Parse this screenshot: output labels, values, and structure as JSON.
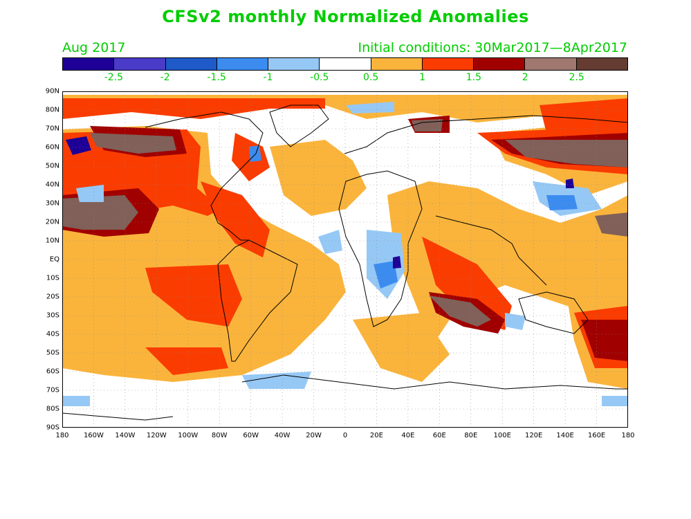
{
  "title": "CFSv2 monthly Normalized Anomalies",
  "valid_month": "Aug 2017",
  "initial_conditions": "Initial conditions: 30Mar2017—8Apr2017",
  "colorbar": {
    "colors": [
      "#1e0096",
      "#4a3cc8",
      "#1e5ac8",
      "#3c8cf0",
      "#96c8f5",
      "#ffffff",
      "#fab43c",
      "#fa3c00",
      "#a00000",
      "#a07870",
      "#643c32"
    ],
    "labels": [
      "-2.5",
      "-2",
      "-1.5",
      "-1",
      "-0.5",
      "0.5",
      "1",
      "1.5",
      "2",
      "2.5"
    ]
  },
  "axes": {
    "lat_labels": [
      "90N",
      "80N",
      "70N",
      "60N",
      "50N",
      "40N",
      "30N",
      "20N",
      "10N",
      "EQ",
      "10S",
      "20S",
      "30S",
      "40S",
      "50S",
      "60S",
      "70S",
      "80S",
      "90S"
    ],
    "lon_labels": [
      "180",
      "160W",
      "140W",
      "120W",
      "100W",
      "80W",
      "60W",
      "40W",
      "20W",
      "0",
      "20E",
      "40E",
      "60E",
      "80E",
      "100E",
      "120E",
      "140E",
      "160E",
      "180"
    ]
  }
}
